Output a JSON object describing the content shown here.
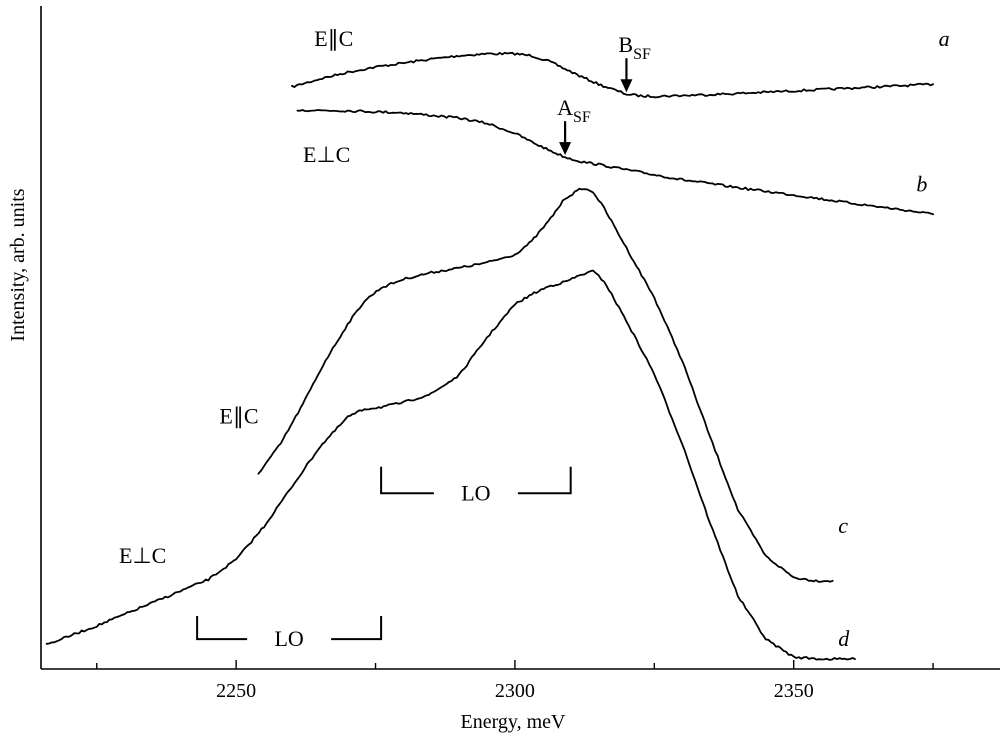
{
  "chart_data": {
    "type": "line",
    "xlabel": "Energy, meV",
    "ylabel": "Intensity, arb. units",
    "xlim": [
      2215,
      2387
    ],
    "ylim": [
      0,
      100
    ],
    "x_ticks": [
      2250,
      2300,
      2350
    ],
    "x_tick_labels": [
      "2250",
      "2300",
      "2350"
    ],
    "grid": false,
    "series": [
      {
        "id": "a",
        "name": "a",
        "polarization_label": "E∥C",
        "x": [
          2260,
          2265,
          2270,
          2275,
          2280,
          2285,
          2290,
          2295,
          2300,
          2303,
          2306,
          2309,
          2312,
          2315,
          2318,
          2320,
          2323,
          2326,
          2330,
          2340,
          2350,
          2360,
          2370,
          2375
        ],
        "y": [
          87.8,
          89.0,
          90.0,
          90.8,
          91.4,
          92.0,
          92.5,
          92.8,
          92.8,
          92.5,
          91.7,
          90.5,
          89.3,
          88.2,
          87.3,
          86.7,
          86.4,
          86.4,
          86.5,
          86.8,
          87.2,
          87.6,
          88.0,
          88.2
        ]
      },
      {
        "id": "b",
        "name": "b",
        "polarization_label": "E⊥C",
        "x": [
          2261,
          2270,
          2280,
          2290,
          2295,
          2300,
          2303,
          2306,
          2309,
          2312,
          2315,
          2320,
          2330,
          2340,
          2350,
          2360,
          2370,
          2375
        ],
        "y": [
          84.3,
          84.2,
          83.9,
          83.1,
          82.3,
          80.8,
          79.5,
          78.3,
          77.2,
          76.5,
          76.1,
          75.3,
          73.8,
          72.6,
          71.5,
          70.3,
          69.2,
          68.6
        ]
      },
      {
        "id": "c",
        "name": "c",
        "polarization_label": "E∥C",
        "x": [
          2254,
          2258,
          2262,
          2266,
          2270,
          2273,
          2276,
          2280,
          2285,
          2290,
          2295,
          2300,
          2303,
          2306,
          2309,
          2312,
          2314,
          2316,
          2320,
          2325,
          2330,
          2335,
          2340,
          2345,
          2350,
          2354,
          2357
        ],
        "y": [
          29.5,
          34.0,
          40.0,
          46.5,
          52.0,
          55.5,
          57.5,
          58.8,
          59.8,
          60.5,
          61.3,
          62.5,
          64.5,
          67.5,
          71.0,
          72.5,
          72.0,
          69.5,
          63.5,
          56.0,
          46.5,
          35.0,
          24.0,
          17.0,
          13.8,
          13.3,
          13.3
        ]
      },
      {
        "id": "d",
        "name": "d",
        "polarization_label": "E⊥C",
        "x": [
          2216,
          2225,
          2235,
          2245,
          2250,
          2255,
          2260,
          2265,
          2270,
          2273,
          2276,
          2280,
          2285,
          2290,
          2295,
          2300,
          2303,
          2306,
          2309,
          2312,
          2314,
          2316,
          2320,
          2325,
          2330,
          2335,
          2340,
          2345,
          2350,
          2355,
          2361
        ],
        "y": [
          3.7,
          6.5,
          10.0,
          13.5,
          16.5,
          21.5,
          27.5,
          33.5,
          38.0,
          39.2,
          39.5,
          40.2,
          41.5,
          44.3,
          50.0,
          55.0,
          56.5,
          57.7,
          58.4,
          59.5,
          60.0,
          58.5,
          52.5,
          44.5,
          34.0,
          22.0,
          11.0,
          4.5,
          1.8,
          1.5,
          1.5
        ]
      }
    ],
    "annotations": [
      {
        "id": "bsf",
        "main": "B",
        "sub": "SF",
        "x": 2320,
        "y": 87.0,
        "type": "arrow-down"
      },
      {
        "id": "asf",
        "main": "A",
        "sub": "SF",
        "x": 2309,
        "y": 77.5,
        "type": "arrow-down"
      }
    ],
    "curve_labels": [
      {
        "id": "label-a",
        "text": "a",
        "x": 2376,
        "y": 94.0
      },
      {
        "id": "label-b",
        "text": "b",
        "x": 2372,
        "y": 72.0
      },
      {
        "id": "label-c",
        "text": "c",
        "x": 2358,
        "y": 20.5
      },
      {
        "id": "label-d",
        "text": "d",
        "x": 2358,
        "y": 3.5
      }
    ],
    "polarization_labels": [
      {
        "id": "pol-a",
        "text": "E∥C",
        "x": 2264,
        "y": 94.0
      },
      {
        "id": "pol-b",
        "text": "E⊥C",
        "x": 2262,
        "y": 76.5
      },
      {
        "id": "pol-c",
        "text": "E∥C",
        "x": 2247,
        "y": 37.0
      },
      {
        "id": "pol-d",
        "text": "E⊥C",
        "x": 2229,
        "y": 16.0
      }
    ],
    "lo_brackets": [
      {
        "id": "lo-upper",
        "text": "LO",
        "x_start": 2276,
        "x_end": 2310,
        "y_top": 30.5,
        "y_base": 26.5
      },
      {
        "id": "lo-lower",
        "text": "LO",
        "x_start": 2243,
        "x_end": 2276,
        "y_top": 8.0,
        "y_base": 4.5
      }
    ]
  }
}
